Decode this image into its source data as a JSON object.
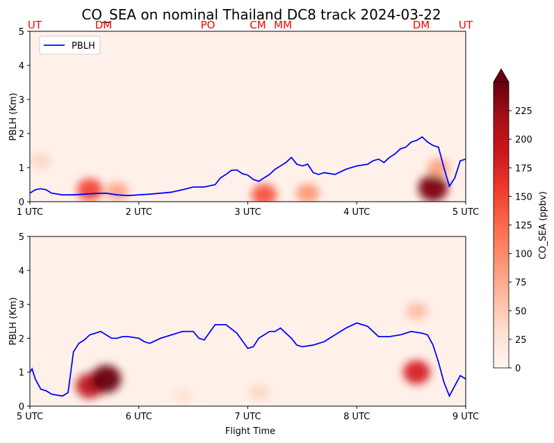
{
  "title": "CO_SEA on nominal Thailand DC8 track 2024-03-22",
  "colors": {
    "pblh_line": "#0000ff",
    "site_labels": "#ff0000",
    "cmap": [
      "#fff5f0",
      "#fee0d2",
      "#fcbba1",
      "#fc9272",
      "#fb6a4a",
      "#ef3b2c",
      "#cb181d",
      "#a50f15",
      "#67000d"
    ]
  },
  "sites_top": [
    "UT",
    "DM",
    "PO",
    "CM",
    "MM",
    "DM",
    "UT"
  ],
  "colorbar": {
    "label": "CO_SEA (ppbv)",
    "ticks": [
      "0",
      "25",
      "50",
      "75",
      "100",
      "125",
      "150",
      "175",
      "200",
      "225"
    ],
    "extend": "max"
  },
  "chart_data": [
    {
      "type": "heatmap",
      "panel": "top",
      "ylabel": "PBLH (Km)",
      "xlabel": "",
      "xticks": [
        "1 UTC",
        "2 UTC",
        "3 UTC",
        "4 UTC",
        "5 UTC"
      ],
      "yticks": [
        "0",
        "1",
        "2",
        "3",
        "4",
        "5"
      ],
      "xlim": [
        1,
        5
      ],
      "ylim": [
        0,
        5
      ],
      "legend": {
        "label": "PBLH",
        "loc": "upper left"
      },
      "series": [
        {
          "name": "PBLH",
          "x": [
            1.0,
            1.05,
            1.1,
            1.15,
            1.2,
            1.3,
            1.4,
            1.5,
            1.6,
            1.7,
            1.8,
            1.9,
            2.0,
            2.1,
            2.2,
            2.3,
            2.4,
            2.5,
            2.55,
            2.6,
            2.7,
            2.75,
            2.8,
            2.85,
            2.9,
            2.95,
            3.0,
            3.05,
            3.1,
            3.15,
            3.2,
            3.25,
            3.3,
            3.35,
            3.4,
            3.45,
            3.5,
            3.55,
            3.6,
            3.65,
            3.7,
            3.8,
            3.9,
            4.0,
            4.1,
            4.15,
            4.2,
            4.25,
            4.3,
            4.35,
            4.4,
            4.45,
            4.5,
            4.55,
            4.6,
            4.65,
            4.7,
            4.75,
            4.8,
            4.85,
            4.9,
            4.95,
            5.0
          ],
          "y": [
            0.25,
            0.35,
            0.38,
            0.35,
            0.25,
            0.2,
            0.2,
            0.22,
            0.24,
            0.25,
            0.2,
            0.18,
            0.2,
            0.22,
            0.25,
            0.28,
            0.35,
            0.43,
            0.43,
            0.43,
            0.5,
            0.7,
            0.8,
            0.92,
            0.93,
            0.82,
            0.78,
            0.65,
            0.6,
            0.7,
            0.8,
            0.95,
            1.05,
            1.15,
            1.3,
            1.1,
            1.05,
            1.1,
            0.85,
            0.8,
            0.85,
            0.8,
            0.95,
            1.05,
            1.1,
            1.2,
            1.25,
            1.15,
            1.3,
            1.4,
            1.55,
            1.6,
            1.75,
            1.8,
            1.9,
            1.75,
            1.65,
            1.6,
            1.0,
            0.45,
            0.7,
            1.2,
            1.25
          ]
        }
      ],
      "plumes": [
        {
          "t": 1.1,
          "z": 1.2,
          "val": 40
        },
        {
          "t": 1.55,
          "z": 0.35,
          "val": 150
        },
        {
          "t": 1.8,
          "z": 0.3,
          "val": 80
        },
        {
          "t": 3.15,
          "z": 0.2,
          "val": 140
        },
        {
          "t": 3.55,
          "z": 0.25,
          "val": 90
        },
        {
          "t": 4.7,
          "z": 0.4,
          "val": 240
        },
        {
          "t": 4.75,
          "z": 1.0,
          "val": 80
        }
      ]
    },
    {
      "type": "heatmap",
      "panel": "bottom",
      "ylabel": "PBLH (Km)",
      "xlabel": "Flight Time",
      "xticks": [
        "5 UTC",
        "6 UTC",
        "7 UTC",
        "8 UTC",
        "9 UTC"
      ],
      "yticks": [
        "0",
        "1",
        "2",
        "3",
        "4",
        "5"
      ],
      "xlim": [
        5,
        9
      ],
      "ylim": [
        0,
        5
      ],
      "series": [
        {
          "name": "PBLH",
          "x": [
            5.0,
            5.02,
            5.05,
            5.1,
            5.15,
            5.2,
            5.3,
            5.35,
            5.4,
            5.45,
            5.5,
            5.55,
            5.6,
            5.65,
            5.7,
            5.75,
            5.8,
            5.85,
            5.9,
            6.0,
            6.05,
            6.1,
            6.2,
            6.3,
            6.4,
            6.5,
            6.55,
            6.6,
            6.7,
            6.8,
            6.9,
            7.0,
            7.05,
            7.1,
            7.15,
            7.2,
            7.25,
            7.3,
            7.4,
            7.45,
            7.5,
            7.6,
            7.7,
            7.8,
            7.9,
            8.0,
            8.1,
            8.2,
            8.3,
            8.4,
            8.5,
            8.6,
            8.65,
            8.7,
            8.75,
            8.8,
            8.85,
            8.9,
            8.95,
            9.0
          ],
          "y": [
            1.0,
            1.1,
            0.8,
            0.5,
            0.45,
            0.35,
            0.3,
            0.4,
            1.6,
            1.85,
            1.95,
            2.1,
            2.15,
            2.2,
            2.1,
            2.0,
            2.0,
            2.05,
            2.05,
            2.0,
            1.9,
            1.85,
            2.0,
            2.1,
            2.2,
            2.2,
            2.0,
            1.95,
            2.4,
            2.4,
            2.15,
            1.7,
            1.75,
            2.0,
            2.1,
            2.2,
            2.2,
            2.3,
            2.0,
            1.8,
            1.75,
            1.8,
            1.9,
            2.1,
            2.3,
            2.45,
            2.35,
            2.05,
            2.05,
            2.1,
            2.2,
            2.15,
            2.1,
            1.8,
            1.3,
            0.7,
            0.3,
            0.6,
            0.9,
            0.8
          ]
        }
      ],
      "plumes": [
        {
          "t": 5.55,
          "z": 0.6,
          "val": 200
        },
        {
          "t": 5.7,
          "z": 0.8,
          "val": 250
        },
        {
          "t": 6.4,
          "z": 0.3,
          "val": 30
        },
        {
          "t": 7.1,
          "z": 0.4,
          "val": 40
        },
        {
          "t": 8.55,
          "z": 1.0,
          "val": 180
        },
        {
          "t": 8.55,
          "z": 2.8,
          "val": 60
        }
      ]
    }
  ]
}
